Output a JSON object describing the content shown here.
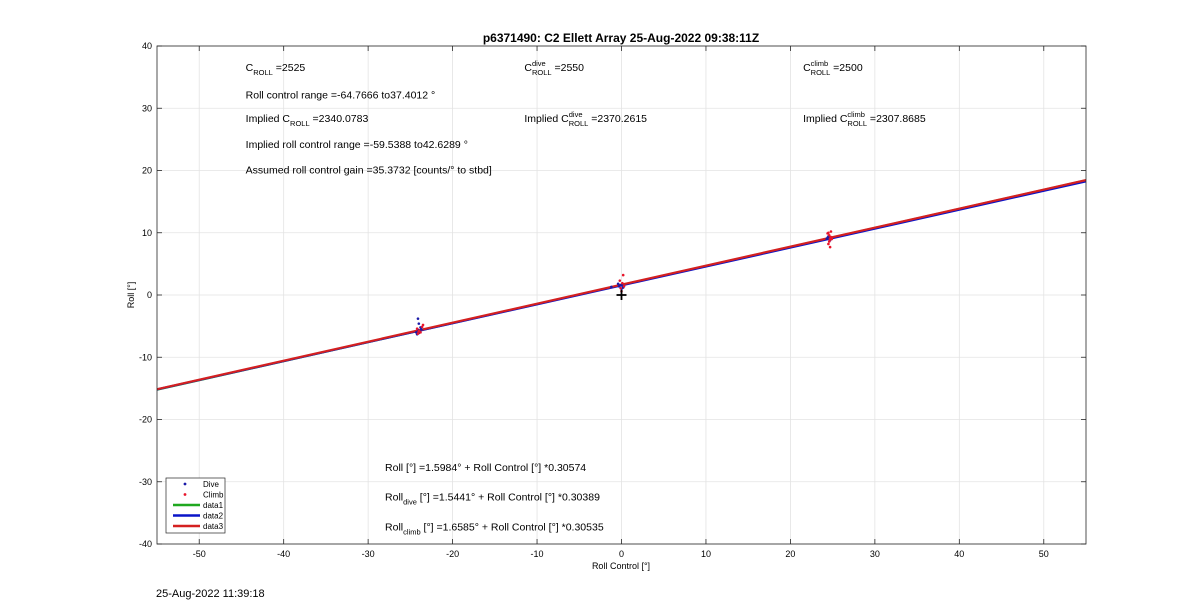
{
  "footer": {
    "timestamp": "25-Aug-2022 11:39:18"
  },
  "chart_data": {
    "type": "scatter",
    "title": "p6371490: C2 Ellett Array 25-Aug-2022 09:38:11Z",
    "xlabel": "Roll Control [°]",
    "ylabel": "Roll [°]",
    "xlim": [
      -55,
      55
    ],
    "ylim": [
      -40,
      40
    ],
    "xticks": [
      -50,
      -40,
      -30,
      -20,
      -10,
      0,
      10,
      20,
      30,
      40,
      50
    ],
    "yticks": [
      -40,
      -30,
      -20,
      -10,
      0,
      10,
      20,
      30,
      40
    ],
    "grid": true,
    "legend_position": "bottom-left",
    "colors": {
      "dive": "#1a1aa8",
      "climb": "#e8142a",
      "data1": "#1fa81f",
      "data2": "#0a14c8",
      "data3": "#d42020"
    },
    "series": [
      {
        "name": "Dive",
        "marker": "dot",
        "points": [
          [
            -24.1,
            -5.6
          ],
          [
            -24.0,
            -6.1
          ],
          [
            -23.9,
            -5.9
          ],
          [
            -24.2,
            -6.3
          ],
          [
            -23.8,
            -5.2
          ],
          [
            -24.0,
            -4.6
          ],
          [
            -24.1,
            -3.8
          ],
          [
            -23.7,
            -5.5
          ],
          [
            -24.3,
            -6.0
          ],
          [
            -0.3,
            1.4
          ],
          [
            -0.1,
            1.6
          ],
          [
            0.2,
            1.2
          ],
          [
            -0.4,
            1.8
          ],
          [
            0.1,
            1.5
          ],
          [
            -1.2,
            1.3
          ],
          [
            0.0,
            1.0
          ],
          [
            24.3,
            9.0
          ],
          [
            24.5,
            9.4
          ],
          [
            24.7,
            8.8
          ],
          [
            24.4,
            9.2
          ]
        ]
      },
      {
        "name": "Climb",
        "marker": "dot",
        "points": [
          [
            -24.0,
            -5.8
          ],
          [
            -23.8,
            -6.0
          ],
          [
            -23.6,
            -5.1
          ],
          [
            -24.2,
            -5.4
          ],
          [
            -23.5,
            -4.8
          ],
          [
            -24.1,
            -6.2
          ],
          [
            0.1,
            1.9
          ],
          [
            0.3,
            1.4
          ],
          [
            -0.2,
            2.3
          ],
          [
            0.2,
            3.2
          ],
          [
            0.0,
            0.6
          ],
          [
            -0.1,
            1.1
          ],
          [
            24.6,
            9.6
          ],
          [
            24.8,
            10.2
          ],
          [
            24.5,
            8.2
          ],
          [
            24.7,
            7.7
          ],
          [
            24.9,
            9.0
          ],
          [
            24.4,
            9.9
          ],
          [
            24.6,
            8.6
          ],
          [
            24.8,
            9.3
          ],
          [
            24.5,
            10.0
          ],
          [
            24.7,
            8.9
          ]
        ]
      },
      {
        "name": "data1",
        "type": "line",
        "intercept": 1.5984,
        "slope": 0.30574
      },
      {
        "name": "data2",
        "type": "line",
        "intercept": 1.5441,
        "slope": 0.30389
      },
      {
        "name": "data3",
        "type": "line",
        "intercept": 1.6585,
        "slope": 0.30535
      }
    ],
    "origin_marker": [
      0,
      0
    ],
    "annotations": [
      {
        "main": "C",
        "sub": "ROLL",
        "tail": " =2525",
        "x": -44.5,
        "y": 36
      },
      {
        "main": "C",
        "sup": "dive",
        "sub": "ROLL",
        "tail": " =2550",
        "x": -11.5,
        "y": 36
      },
      {
        "main": "C",
        "sup": "climb",
        "sub": "ROLL",
        "tail": " =2500",
        "x": 21.5,
        "y": 36
      },
      {
        "main": "Roll control range =-64.7666 to37.4012 °",
        "x": -44.5,
        "y": 31.6
      },
      {
        "main": "Implied C",
        "sub": "ROLL",
        "tail": " =2340.0783",
        "x": -44.5,
        "y": 27.8
      },
      {
        "main": "Implied C",
        "sup": "dive",
        "sub": "ROLL",
        "tail": " =2370.2615",
        "x": -11.5,
        "y": 27.8
      },
      {
        "main": "Implied C",
        "sup": "climb",
        "sub": "ROLL",
        "tail": " =2307.8685",
        "x": 21.5,
        "y": 27.8
      },
      {
        "main": "Implied roll control range =-59.5388 to42.6289 °",
        "x": -44.5,
        "y": 23.6
      },
      {
        "main": "Assumed roll control gain =35.3732 [counts/° to stbd]",
        "x": -44.5,
        "y": 19.5
      },
      {
        "main": "Roll [°] =1.5984° + Roll Control [°] *0.30574",
        "x": -28,
        "y": -28.3
      },
      {
        "main": "Roll",
        "sub": "dive",
        "tail": " [°] =1.5441° + Roll Control [°] *0.30389",
        "x": -28,
        "y": -33
      },
      {
        "main": "Roll",
        "sub": "climb",
        "tail": " [°] =1.6585° + Roll Control [°] *0.30535",
        "x": -28,
        "y": -37.8
      }
    ]
  }
}
